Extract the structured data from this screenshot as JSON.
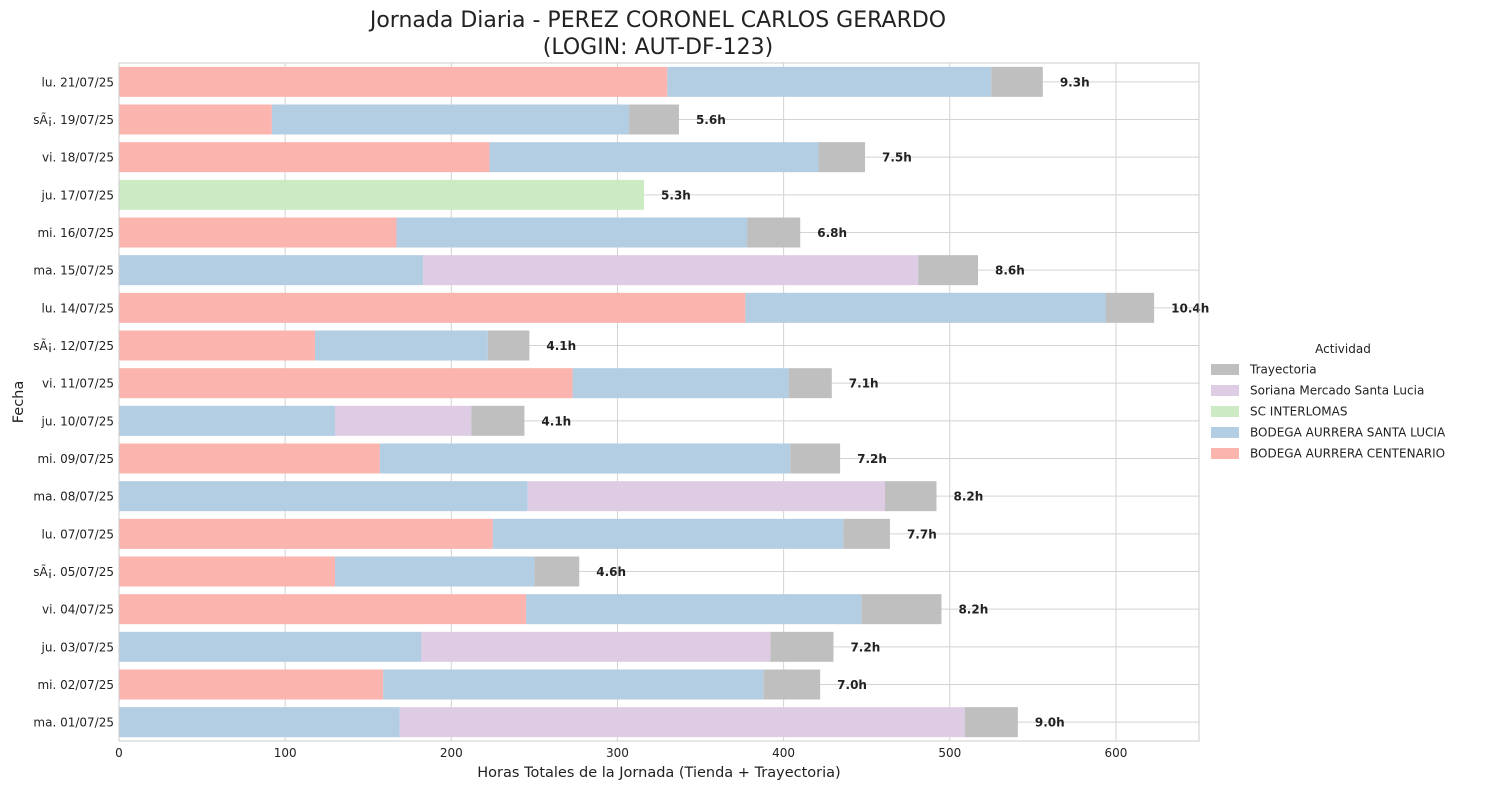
{
  "chart_data": {
    "type": "bar",
    "orientation": "horizontal",
    "stacked": true,
    "title": "Jornada Diaria - PEREZ CORONEL CARLOS GERARDO\n(LOGIN: AUT-DF-123)",
    "xlabel": "Horas Totales de la Jornada (Tienda + Trayectoria)",
    "ylabel": "Fecha",
    "xlim": [
      0,
      650
    ],
    "xticks": [
      0,
      100,
      200,
      300,
      400,
      500,
      600
    ],
    "grid": true,
    "legend": {
      "title": "Actividad",
      "placement": "right",
      "entries": [
        "Trayectoria",
        "Soriana Mercado Santa Lucia",
        "SC INTERLOMAS",
        "BODEGA AURRERA SANTA LUCIA",
        "BODEGA AURRERA CENTENARIO"
      ]
    },
    "colors": {
      "BODEGA AURRERA CENTENARIO": "#fbb4ae",
      "BODEGA AURRERA SANTA LUCIA": "#b3cde3",
      "SC INTERLOMAS": "#ccebc5",
      "Soriana Mercado Santa Lucia": "#decbe4",
      "Trayectoria": "#bfbfbf"
    },
    "categories": [
      "lu. 21/07/25",
      "sÃ¡. 19/07/25",
      "vi. 18/07/25",
      "ju. 17/07/25",
      "mi. 16/07/25",
      "ma. 15/07/25",
      "lu. 14/07/25",
      "sÃ¡. 12/07/25",
      "vi. 11/07/25",
      "ju. 10/07/25",
      "mi. 09/07/25",
      "ma. 08/07/25",
      "lu. 07/07/25",
      "sÃ¡. 05/07/25",
      "vi. 04/07/25",
      "ju. 03/07/25",
      "mi. 02/07/25",
      "ma. 01/07/25"
    ],
    "bars": [
      {
        "date": "lu. 21/07/25",
        "total_label": "9.3h",
        "segments": [
          {
            "series": "BODEGA AURRERA CENTENARIO",
            "value": 330
          },
          {
            "series": "BODEGA AURRERA SANTA LUCIA",
            "value": 195
          },
          {
            "series": "Trayectoria",
            "value": 31
          }
        ]
      },
      {
        "date": "sÃ¡. 19/07/25",
        "total_label": "5.6h",
        "segments": [
          {
            "series": "BODEGA AURRERA CENTENARIO",
            "value": 92
          },
          {
            "series": "BODEGA AURRERA SANTA LUCIA",
            "value": 215
          },
          {
            "series": "Trayectoria",
            "value": 30
          }
        ]
      },
      {
        "date": "vi. 18/07/25",
        "total_label": "7.5h",
        "segments": [
          {
            "series": "BODEGA AURRERA CENTENARIO",
            "value": 223
          },
          {
            "series": "BODEGA AURRERA SANTA LUCIA",
            "value": 198
          },
          {
            "series": "Trayectoria",
            "value": 28
          }
        ]
      },
      {
        "date": "ju. 17/07/25",
        "total_label": "5.3h",
        "segments": [
          {
            "series": "SC INTERLOMAS",
            "value": 316
          }
        ]
      },
      {
        "date": "mi. 16/07/25",
        "total_label": "6.8h",
        "segments": [
          {
            "series": "BODEGA AURRERA CENTENARIO",
            "value": 167
          },
          {
            "series": "BODEGA AURRERA SANTA LUCIA",
            "value": 211
          },
          {
            "series": "Trayectoria",
            "value": 32
          }
        ]
      },
      {
        "date": "ma. 15/07/25",
        "total_label": "8.6h",
        "segments": [
          {
            "series": "BODEGA AURRERA SANTA LUCIA",
            "value": 183
          },
          {
            "series": "Soriana Mercado Santa Lucia",
            "value": 298
          },
          {
            "series": "Trayectoria",
            "value": 36
          }
        ]
      },
      {
        "date": "lu. 14/07/25",
        "total_label": "10.4h",
        "segments": [
          {
            "series": "BODEGA AURRERA CENTENARIO",
            "value": 377
          },
          {
            "series": "BODEGA AURRERA SANTA LUCIA",
            "value": 217
          },
          {
            "series": "Trayectoria",
            "value": 29
          }
        ]
      },
      {
        "date": "sÃ¡. 12/07/25",
        "total_label": "4.1h",
        "segments": [
          {
            "series": "BODEGA AURRERA CENTENARIO",
            "value": 118
          },
          {
            "series": "BODEGA AURRERA SANTA LUCIA",
            "value": 104
          },
          {
            "series": "Trayectoria",
            "value": 25
          }
        ]
      },
      {
        "date": "vi. 11/07/25",
        "total_label": "7.1h",
        "segments": [
          {
            "series": "BODEGA AURRERA CENTENARIO",
            "value": 273
          },
          {
            "series": "BODEGA AURRERA SANTA LUCIA",
            "value": 130
          },
          {
            "series": "Trayectoria",
            "value": 26
          }
        ]
      },
      {
        "date": "ju. 10/07/25",
        "total_label": "4.1h",
        "segments": [
          {
            "series": "BODEGA AURRERA SANTA LUCIA",
            "value": 130
          },
          {
            "series": "Soriana Mercado Santa Lucia",
            "value": 82
          },
          {
            "series": "Trayectoria",
            "value": 32
          }
        ]
      },
      {
        "date": "mi. 09/07/25",
        "total_label": "7.2h",
        "segments": [
          {
            "series": "BODEGA AURRERA CENTENARIO",
            "value": 157
          },
          {
            "series": "BODEGA AURRERA SANTA LUCIA",
            "value": 247
          },
          {
            "series": "Trayectoria",
            "value": 30
          }
        ]
      },
      {
        "date": "ma. 08/07/25",
        "total_label": "8.2h",
        "segments": [
          {
            "series": "BODEGA AURRERA SANTA LUCIA",
            "value": 246
          },
          {
            "series": "Soriana Mercado Santa Lucia",
            "value": 215
          },
          {
            "series": "Trayectoria",
            "value": 31
          }
        ]
      },
      {
        "date": "lu. 07/07/25",
        "total_label": "7.7h",
        "segments": [
          {
            "series": "BODEGA AURRERA CENTENARIO",
            "value": 225
          },
          {
            "series": "BODEGA AURRERA SANTA LUCIA",
            "value": 211
          },
          {
            "series": "Trayectoria",
            "value": 28
          }
        ]
      },
      {
        "date": "sÃ¡. 05/07/25",
        "total_label": "4.6h",
        "segments": [
          {
            "series": "BODEGA AURRERA CENTENARIO",
            "value": 130
          },
          {
            "series": "BODEGA AURRERA SANTA LUCIA",
            "value": 120
          },
          {
            "series": "Trayectoria",
            "value": 27
          }
        ]
      },
      {
        "date": "vi. 04/07/25",
        "total_label": "8.2h",
        "segments": [
          {
            "series": "BODEGA AURRERA CENTENARIO",
            "value": 245
          },
          {
            "series": "BODEGA AURRERA SANTA LUCIA",
            "value": 202
          },
          {
            "series": "Trayectoria",
            "value": 48
          }
        ]
      },
      {
        "date": "ju. 03/07/25",
        "total_label": "7.2h",
        "segments": [
          {
            "series": "BODEGA AURRERA SANTA LUCIA",
            "value": 182
          },
          {
            "series": "Soriana Mercado Santa Lucia",
            "value": 210
          },
          {
            "series": "Trayectoria",
            "value": 38
          }
        ]
      },
      {
        "date": "mi. 02/07/25",
        "total_label": "7.0h",
        "segments": [
          {
            "series": "BODEGA AURRERA CENTENARIO",
            "value": 159
          },
          {
            "series": "BODEGA AURRERA SANTA LUCIA",
            "value": 229
          },
          {
            "series": "Trayectoria",
            "value": 34
          }
        ]
      },
      {
        "date": "ma. 01/07/25",
        "total_label": "9.0h",
        "segments": [
          {
            "series": "BODEGA AURRERA SANTA LUCIA",
            "value": 169
          },
          {
            "series": "Soriana Mercado Santa Lucia",
            "value": 340
          },
          {
            "series": "Trayectoria",
            "value": 32
          }
        ]
      }
    ]
  }
}
